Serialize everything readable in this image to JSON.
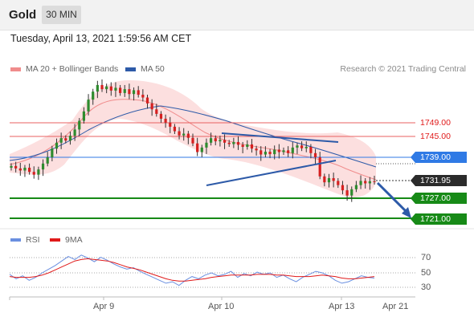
{
  "header": {
    "instrument": "Gold",
    "timeframe": "30 MIN"
  },
  "datetime": "Tuesday, April 13, 2021 1:59:56 AM CET",
  "legend": {
    "bollinger": "MA 20 + Bollinger Bands",
    "ma50": "MA 50"
  },
  "copyright": "Research © 2021 Trading Central",
  "colors": {
    "resistance": "#e01a1a",
    "pivot": "#2f7ae5",
    "support": "#178a17",
    "price": "#2b2b2b",
    "bands": "#f9c8c8",
    "ma50": "#2d5aa8",
    "trendline": "#2d5aa8",
    "arrow": "#2d5aa8"
  },
  "levels": {
    "r2": "1749.00",
    "r1": "1745.00",
    "pivot": "1739.00",
    "last": "1731.95",
    "s1": "1727.00",
    "s2": "1721.00"
  },
  "rsi_legend": {
    "rsi": "RSI",
    "ma9": "9MA"
  },
  "chart_data": [
    {
      "type": "candlestick",
      "title": "Gold 30 MIN",
      "x_ticks": [
        "Apr 9",
        "Apr 10",
        "Apr 13",
        "Apr 21"
      ],
      "price_levels": [
        1749.0,
        1745.0,
        1739.0,
        1731.95,
        1727.0,
        1721.0
      ],
      "closes": [
        1736.5,
        1735.8,
        1735.2,
        1736.0,
        1734.8,
        1734.0,
        1735.5,
        1737.2,
        1739.0,
        1741.5,
        1743.2,
        1744.5,
        1743.8,
        1745.2,
        1747.0,
        1749.5,
        1752.2,
        1755.6,
        1757.9,
        1759.8,
        1758.6,
        1759.4,
        1758.2,
        1759.0,
        1757.5,
        1758.6,
        1757.2,
        1758.3,
        1757.0,
        1756.2,
        1754.5,
        1752.8,
        1751.5,
        1750.1,
        1749.0,
        1747.8,
        1746.5,
        1745.3,
        1745.8,
        1744.6,
        1743.0,
        1740.5,
        1741.8,
        1743.2,
        1744.5,
        1743.6,
        1744.0,
        1743.2,
        1742.8,
        1743.4,
        1742.6,
        1742.0,
        1742.7,
        1741.5,
        1741.0,
        1739.8,
        1740.6,
        1739.9,
        1741.2,
        1740.5,
        1741.0,
        1740.2,
        1741.8,
        1742.4,
        1741.6,
        1742.0,
        1740.2,
        1739.0,
        1733.5,
        1731.8,
        1733.0,
        1732.2,
        1731.0,
        1729.5,
        1728.0,
        1729.8,
        1731.0,
        1732.2,
        1731.5,
        1732.1,
        1731.95
      ],
      "ma50_endpoints": [
        1735.5,
        1739.5
      ],
      "trendlines": [
        {
          "name": "upper",
          "from": [
            1744.8
          ],
          "to": [
            1743.2
          ]
        },
        {
          "name": "lower",
          "from": [
            1729.5
          ],
          "to": [
            1738.0
          ]
        }
      ]
    },
    {
      "type": "line",
      "title": "RSI",
      "ylim": [
        20,
        80
      ],
      "y_ticks": [
        70,
        50,
        30
      ],
      "series": [
        {
          "name": "RSI",
          "values": [
            48,
            42,
            46,
            40,
            44,
            50,
            55,
            60,
            66,
            72,
            68,
            74,
            70,
            65,
            71,
            67,
            62,
            58,
            55,
            57,
            52,
            48,
            44,
            40,
            36,
            38,
            33,
            40,
            45,
            42,
            47,
            50,
            46,
            48,
            52,
            44,
            49,
            46,
            51,
            48,
            50,
            44,
            47,
            42,
            38,
            44,
            48,
            52,
            50,
            46,
            40,
            36,
            38,
            42,
            46,
            44,
            43
          ]
        },
        {
          "name": "9MA",
          "values": [
            45,
            44,
            44,
            44,
            45,
            47,
            50,
            54,
            58,
            62,
            66,
            68,
            69,
            68,
            67,
            66,
            64,
            61,
            58,
            56,
            54,
            51,
            48,
            45,
            42,
            40,
            39,
            39,
            40,
            41,
            42,
            44,
            45,
            46,
            47,
            47,
            47,
            47,
            48,
            48,
            48,
            47,
            47,
            46,
            45,
            45,
            45,
            46,
            47,
            46,
            45,
            43,
            42,
            42,
            43,
            44,
            45
          ]
        }
      ]
    }
  ]
}
